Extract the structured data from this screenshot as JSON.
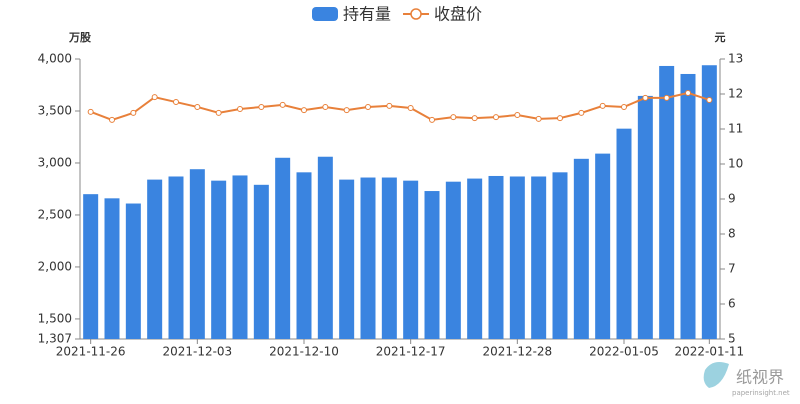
{
  "chart_data": {
    "type": "bar_line",
    "ylabel": "万股",
    "y2label": "元",
    "categories": [
      "2021-11-26",
      null,
      null,
      null,
      null,
      "2021-12-03",
      null,
      null,
      null,
      null,
      "2021-12-10",
      null,
      null,
      null,
      null,
      "2021-12-17",
      null,
      null,
      null,
      null,
      "2021-12-28",
      null,
      null,
      null,
      null,
      "2022-01-05",
      null,
      null,
      null,
      "2022-01-11"
    ],
    "series": [
      {
        "name": "持有量",
        "type": "bar",
        "color": "#3a84e0",
        "axis": "y",
        "values": [
          2700,
          2660,
          2610,
          2840,
          2870,
          2940,
          2830,
          2880,
          2790,
          3050,
          2910,
          3060,
          2840,
          2860,
          2860,
          2830,
          2730,
          2820,
          2850,
          2875,
          2870,
          2870,
          2910,
          3040,
          3090,
          3330,
          3645,
          3933,
          3856,
          3940
        ]
      },
      {
        "name": "收盘价",
        "type": "line",
        "color": "#e8803a",
        "axis": "y2",
        "values": [
          11.49,
          11.26,
          11.46,
          11.91,
          11.77,
          11.63,
          11.46,
          11.57,
          11.63,
          11.69,
          11.54,
          11.63,
          11.54,
          11.63,
          11.66,
          11.6,
          11.26,
          11.34,
          11.31,
          11.34,
          11.4,
          11.29,
          11.31,
          11.46,
          11.66,
          11.63,
          11.89,
          11.89,
          12.03,
          11.83
        ]
      }
    ],
    "ylim": [
      1307,
      4000
    ],
    "yticks": [
      {
        "value": 1307,
        "label": "1,307"
      },
      {
        "value": 1500,
        "label": "1,500"
      },
      {
        "value": 2000,
        "label": "2,000"
      },
      {
        "value": 2500,
        "label": "2,500"
      },
      {
        "value": 3000,
        "label": "3,000"
      },
      {
        "value": 3500,
        "label": "3,500"
      },
      {
        "value": 4000,
        "label": "4,000"
      }
    ],
    "y2lim": [
      5,
      13
    ],
    "y2ticks": [
      5,
      6,
      7,
      8,
      9,
      10,
      11,
      12,
      13
    ],
    "grid": false,
    "legend": "top"
  },
  "watermark": {
    "name": "纸视界",
    "site": "paperinsight.net"
  }
}
